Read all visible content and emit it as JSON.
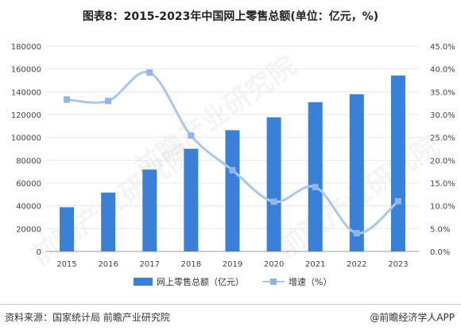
{
  "title": "图表8：2015-2023年中国网上零售总额(单位：亿元，%)",
  "source": "资料来源：国家统计局 前瞻产业研究院",
  "credit": "@前瞻经济学人APP",
  "watermark": "前瞻产业研究院",
  "colors": {
    "bar": "#3a7fd8",
    "line": "#a9c8ee",
    "marker": "#8fb6e6",
    "grid": "#e8e8e8"
  },
  "chart_data": {
    "type": "bar",
    "categories": [
      "2015",
      "2016",
      "2017",
      "2018",
      "2019",
      "2020",
      "2021",
      "2022",
      "2023"
    ],
    "series": [
      {
        "name": "网上零售总额（亿元）",
        "type": "bar",
        "axis": "left",
        "values": [
          38773,
          51556,
          71751,
          90065,
          106324,
          117601,
          130884,
          137853,
          154264
        ]
      },
      {
        "name": "增速（%）",
        "type": "line",
        "axis": "right",
        "values": [
          33.3,
          33.0,
          39.2,
          25.4,
          17.8,
          10.9,
          14.1,
          4.0,
          11.0
        ]
      }
    ],
    "left_ticks": [
      "0",
      "20000",
      "40000",
      "60000",
      "80000",
      "100000",
      "120000",
      "140000",
      "160000",
      "180000"
    ],
    "right_ticks": [
      "0.0%",
      "5.0%",
      "10.0%",
      "15.0%",
      "20.0%",
      "25.0%",
      "30.0%",
      "35.0%",
      "40.0%",
      "45.0%"
    ],
    "ylim_left": [
      0,
      180000
    ],
    "ylim_right": [
      0,
      45
    ],
    "legend_position": "bottom"
  }
}
